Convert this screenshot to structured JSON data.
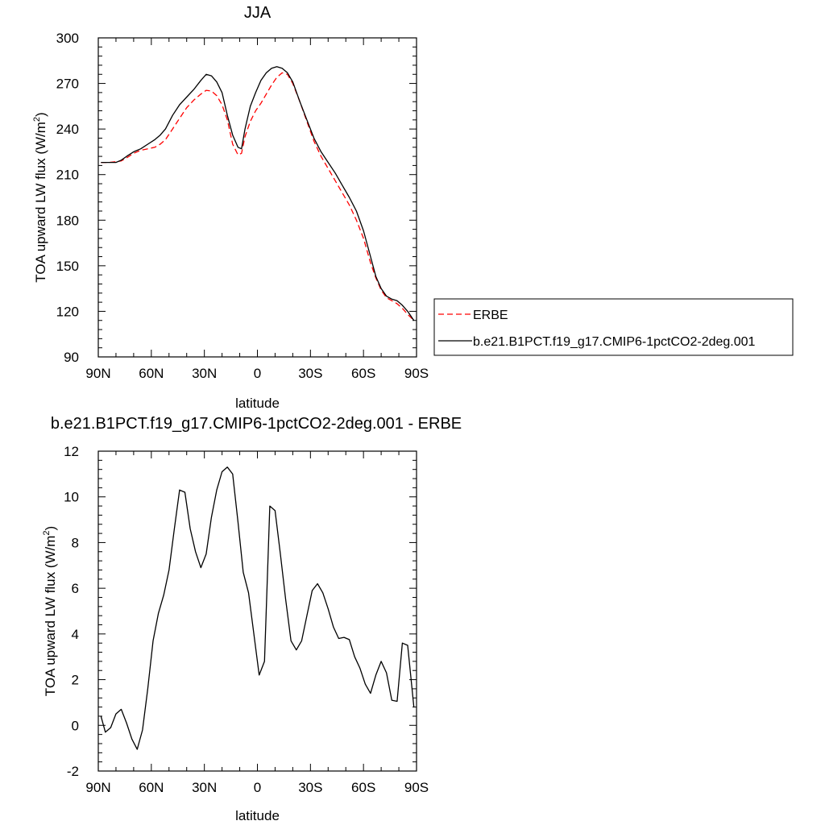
{
  "chart_data": [
    {
      "type": "line",
      "title": "JJA",
      "xlabel": "latitude",
      "ylabel": "TOA upward LW flux (W/m",
      "ylabel_sup": "2",
      "ylabel_end": ")",
      "xlim": [
        90,
        -90
      ],
      "ylim": [
        90,
        300
      ],
      "x_ticks": [
        90,
        60,
        30,
        0,
        -30,
        -60,
        -90
      ],
      "x_tick_labels": [
        "90N",
        "60N",
        "30N",
        "0",
        "30S",
        "60S",
        "90S"
      ],
      "y_ticks": [
        90,
        120,
        150,
        180,
        210,
        240,
        270,
        300
      ],
      "y_tick_labels": [
        "90",
        "120",
        "150",
        "180",
        "210",
        "240",
        "270",
        "300"
      ],
      "grid": false,
      "legend_position": "right",
      "series": [
        {
          "name": "ERBE",
          "color": "#ff0000",
          "dash": true,
          "x": [
            88.5,
            84,
            80,
            77,
            74,
            70,
            66,
            62,
            58,
            55,
            52,
            48,
            44,
            40,
            36,
            32,
            29,
            26,
            23,
            20,
            17,
            14,
            11,
            9,
            7,
            4,
            1,
            -2,
            -5,
            -8,
            -11,
            -14,
            -17,
            -20,
            -24,
            -28,
            -32,
            -36,
            -40,
            -44,
            -48,
            -52,
            -56,
            -60,
            -64,
            -67,
            -70,
            -73,
            -76,
            -79,
            -82,
            -85,
            -88.5
          ],
          "y": [
            218,
            218,
            218.5,
            219,
            221,
            224,
            226,
            227,
            228,
            230,
            233,
            240,
            247,
            254,
            259,
            263,
            265.5,
            265,
            262,
            256,
            246,
            230,
            223,
            224,
            235,
            245,
            252,
            257,
            263,
            269,
            274,
            277,
            276,
            270,
            258,
            245,
            232,
            222,
            214,
            206,
            198,
            190,
            180,
            168,
            152,
            142,
            134,
            129,
            127,
            125,
            122,
            118,
            114
          ]
        },
        {
          "name": "b.e21.B1PCT.f19_g17.CMIP6-1pctCO2-2deg.001",
          "color": "#000000",
          "dash": false,
          "x": [
            88.5,
            84,
            80,
            77,
            74,
            70,
            66,
            62,
            58,
            55,
            52,
            48,
            44,
            40,
            36,
            32,
            29,
            26,
            23,
            20,
            17,
            14,
            11,
            9,
            7,
            4,
            1,
            -2,
            -5,
            -8,
            -11,
            -14,
            -17,
            -20,
            -24,
            -28,
            -32,
            -36,
            -40,
            -44,
            -48,
            -52,
            -56,
            -60,
            -64,
            -67,
            -70,
            -73,
            -76,
            -79,
            -82,
            -85,
            -88.5
          ],
          "y": [
            218,
            218,
            218,
            219.5,
            222,
            225,
            227,
            230,
            233,
            236,
            240,
            249,
            256,
            261,
            266,
            272,
            276,
            275,
            271,
            264,
            249,
            236,
            228,
            227,
            240,
            255,
            264,
            272,
            277,
            280,
            281,
            280,
            277,
            271,
            258,
            246,
            234,
            225,
            218,
            211,
            203,
            195,
            186,
            173,
            156,
            143,
            135,
            130,
            128,
            127,
            124,
            120,
            114
          ]
        }
      ]
    },
    {
      "type": "line",
      "title": "b.e21.B1PCT.f19_g17.CMIP6-1pctCO2-2deg.001 - ERBE",
      "xlabel": "latitude",
      "ylabel": "TOA upward LW flux (W/m",
      "ylabel_sup": "2",
      "ylabel_end": ")",
      "xlim": [
        90,
        -90
      ],
      "ylim": [
        -2,
        12
      ],
      "x_ticks": [
        90,
        60,
        30,
        0,
        -30,
        -60,
        -90
      ],
      "x_tick_labels": [
        "90N",
        "60N",
        "30N",
        "0",
        "30S",
        "60S",
        "90S"
      ],
      "y_ticks": [
        -2,
        0,
        2,
        4,
        6,
        8,
        10,
        12
      ],
      "y_tick_labels": [
        "-2",
        "0",
        "2",
        "4",
        "6",
        "8",
        "10",
        "12"
      ],
      "grid": false,
      "series": [
        {
          "color": "#000000",
          "dash": false,
          "x": [
            88.5,
            86,
            83,
            80,
            77,
            74,
            71,
            68,
            65,
            62,
            59,
            56,
            53,
            50,
            47,
            44,
            41,
            38,
            35,
            32,
            29,
            26,
            23,
            20,
            17,
            14,
            11,
            8,
            5,
            2,
            -1,
            -4,
            -7,
            -10,
            -13,
            -16,
            -19,
            -22,
            -25,
            -28,
            -31,
            -34,
            -37,
            -40,
            -43,
            -46,
            -49,
            -52,
            -55,
            -58,
            -61,
            -64,
            -67,
            -70,
            -73,
            -76,
            -79,
            -82,
            -85,
            -88.5
          ],
          "y": [
            0.4,
            -0.3,
            -0.1,
            0.5,
            0.7,
            0.1,
            -0.6,
            -1.05,
            -0.2,
            1.6,
            3.7,
            4.9,
            5.7,
            6.8,
            8.6,
            10.3,
            10.2,
            8.6,
            7.6,
            6.9,
            7.5,
            9.1,
            10.3,
            11.1,
            11.3,
            11.0,
            8.9,
            6.7,
            5.8,
            4.0,
            2.2,
            2.8,
            9.6,
            9.4,
            7.5,
            5.5,
            3.7,
            3.3,
            3.7,
            4.8,
            5.9,
            6.2,
            5.8,
            5.1,
            4.3,
            3.8,
            3.85,
            3.75,
            3.0,
            2.5,
            1.8,
            1.4,
            2.2,
            2.8,
            2.3,
            1.1,
            1.05,
            3.6,
            3.5,
            0.8
          ]
        }
      ]
    }
  ]
}
